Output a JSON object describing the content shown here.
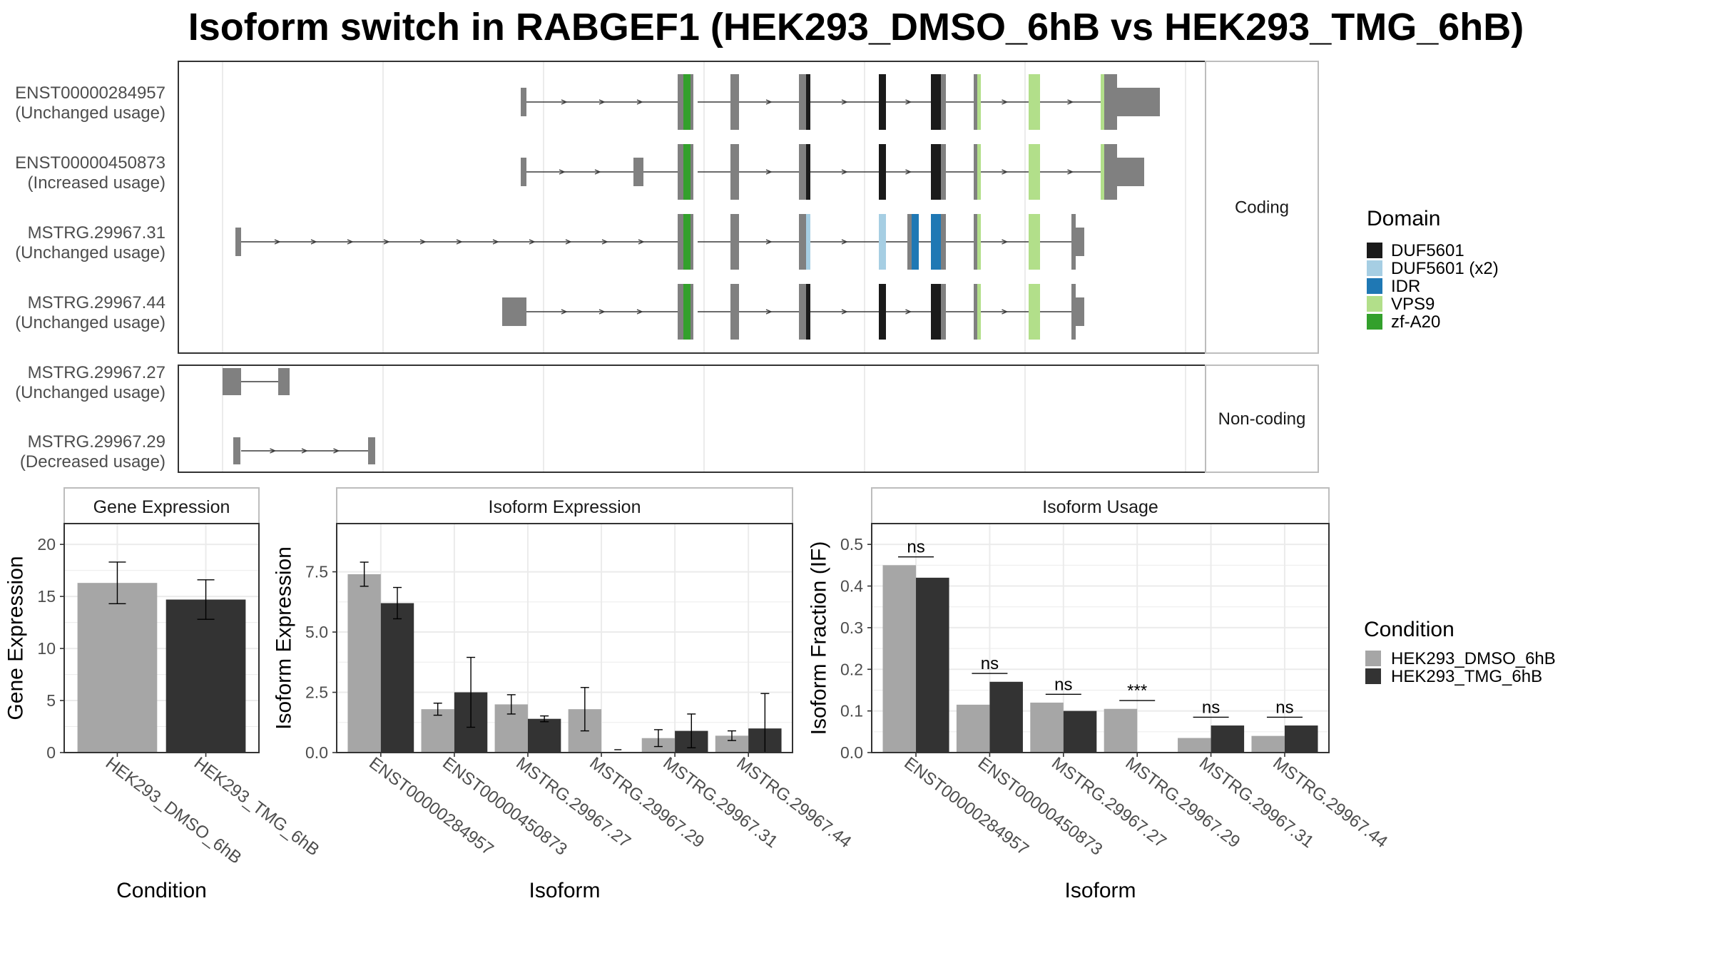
{
  "title": "Isoform switch in RABGEF1 (HEK293_DMSO_6hB vs HEK293_TMG_6hB)",
  "colors": {
    "condition_1": "#a6a6a6",
    "condition_2": "#333333",
    "exon": "#808080",
    "intron": "#3a3a3a",
    "panel_border": "#333333",
    "strip_border": "#bdbdbd",
    "strip_fill": "#ffffff",
    "grid": "#ebebeb",
    "text": "#4d4d4d"
  },
  "domain_legend": {
    "title": "Domain",
    "items": [
      {
        "label": "DUF5601",
        "color": "#1a1a1a"
      },
      {
        "label": "DUF5601 (x2)",
        "color": "#a6cee3"
      },
      {
        "label": "IDR",
        "color": "#1f78b4"
      },
      {
        "label": "VPS9",
        "color": "#b2df8a"
      },
      {
        "label": "zf-A20",
        "color": "#33a02c"
      }
    ]
  },
  "condition_legend": {
    "title": "Condition",
    "items": [
      {
        "label": "HEK293_DMSO_6hB",
        "color": "#a6a6a6"
      },
      {
        "label": "HEK293_TMG_6hB",
        "color": "#333333"
      }
    ]
  },
  "structure": {
    "coding_strip": "Coding",
    "noncoding_strip": "Non-coding",
    "coding": [
      {
        "name": "ENST00000284957",
        "usage": "(Unchanged usage)",
        "type": "full_a"
      },
      {
        "name": "ENST00000450873",
        "usage": "(Increased usage)",
        "type": "full_b"
      },
      {
        "name": "MSTRG.29967.31",
        "usage": "(Unchanged usage)",
        "type": "alt_idr"
      },
      {
        "name": "MSTRG.29967.44",
        "usage": "(Unchanged usage)",
        "type": "full_c"
      }
    ],
    "noncoding": [
      {
        "name": "MSTRG.29967.27",
        "usage": "(Unchanged usage)",
        "type": "nc_27"
      },
      {
        "name": "MSTRG.29967.29",
        "usage": "(Decreased usage)",
        "type": "nc_29"
      }
    ]
  },
  "chart_data": [
    {
      "type": "bar",
      "strip": "Gene Expression",
      "xlabel": "Condition",
      "ylabel": "Gene Expression",
      "ylim": [
        0,
        22
      ],
      "yticks": [
        0,
        5,
        10,
        15,
        20
      ],
      "categories": [
        "HEK293_DMSO_6hB",
        "HEK293_TMG_6hB"
      ],
      "values": [
        16.3,
        14.7
      ],
      "errors": [
        2.0,
        1.9
      ]
    },
    {
      "type": "bar",
      "strip": "Isoform Expression",
      "xlabel": "Isoform",
      "ylabel": "Isoform Expression",
      "ylim": [
        0,
        9.5
      ],
      "yticks": [
        0.0,
        2.5,
        5.0,
        7.5
      ],
      "categories": [
        "ENST00000284957",
        "ENST00000450873",
        "MSTRG.29967.27",
        "MSTRG.29967.29",
        "MSTRG.29967.31",
        "MSTRG.29967.44"
      ],
      "series": [
        {
          "name": "HEK293_DMSO_6hB",
          "values": [
            7.4,
            1.8,
            2.0,
            1.8,
            0.6,
            0.7
          ],
          "errors": [
            0.5,
            0.25,
            0.4,
            0.9,
            0.35,
            0.2
          ]
        },
        {
          "name": "HEK293_TMG_6hB",
          "values": [
            6.2,
            2.5,
            1.4,
            0.0,
            0.9,
            1.0
          ],
          "errors": [
            0.65,
            1.45,
            0.12,
            0.0,
            0.7,
            1.45
          ]
        }
      ]
    },
    {
      "type": "bar",
      "strip": "Isoform Usage",
      "xlabel": "Isoform",
      "ylabel": "Isoform Fraction (IF)",
      "ylim": [
        0,
        0.55
      ],
      "yticks": [
        0.0,
        0.1,
        0.2,
        0.3,
        0.4,
        0.5
      ],
      "categories": [
        "ENST00000284957",
        "ENST00000450873",
        "MSTRG.29967.27",
        "MSTRG.29967.29",
        "MSTRG.29967.31",
        "MSTRG.29967.44"
      ],
      "series": [
        {
          "name": "HEK293_DMSO_6hB",
          "values": [
            0.45,
            0.115,
            0.12,
            0.105,
            0.035,
            0.04
          ]
        },
        {
          "name": "HEK293_TMG_6hB",
          "values": [
            0.42,
            0.17,
            0.1,
            0.0,
            0.065,
            0.065
          ]
        }
      ],
      "annotations": [
        "ns",
        "ns",
        "ns",
        "***",
        "ns",
        "ns"
      ]
    }
  ]
}
